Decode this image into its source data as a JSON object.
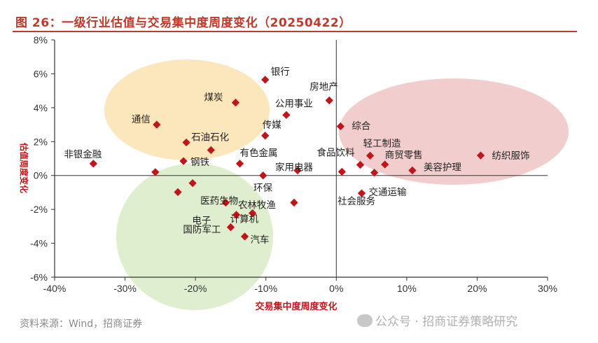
{
  "figure": {
    "title": "图 26：一级行业估值与交易集中度周度变化（20250422）",
    "source": "资料来源：Wind，招商证券",
    "watermark": "公众号 · 招商证券策略研究"
  },
  "chart_data": {
    "type": "scatter",
    "xlabel": "交易集中度周度变化",
    "ylabel": "估值周度变化",
    "xlim": [
      -0.4,
      0.3
    ],
    "ylim": [
      -0.06,
      0.08
    ],
    "x_ticks": [
      "-40%",
      "-30%",
      "-20%",
      "-10%",
      "0%",
      "10%",
      "20%",
      "30%"
    ],
    "y_ticks": [
      "8%",
      "6%",
      "4%",
      "2%",
      "0%",
      "-2%",
      "-4%",
      "-6%"
    ],
    "marker_color": "#c0161b",
    "grid": false,
    "points": [
      {
        "label": "银行",
        "x": -0.101,
        "y": 0.0565
      },
      {
        "label": "房地产",
        "x": -0.01,
        "y": 0.0443
      },
      {
        "label": "煤炭",
        "x": -0.143,
        "y": 0.043
      },
      {
        "label": "公用事业",
        "x": -0.071,
        "y": 0.0357
      },
      {
        "label": "通信",
        "x": -0.255,
        "y": 0.03
      },
      {
        "label": "综合",
        "x": 0.006,
        "y": 0.029
      },
      {
        "label": "传媒",
        "x": -0.101,
        "y": 0.0235
      },
      {
        "label": "石油石化",
        "x": -0.213,
        "y": 0.0195
      },
      {
        "label": "",
        "x": -0.178,
        "y": 0.015
      },
      {
        "label": "纺织服饰",
        "x": 0.205,
        "y": 0.0118
      },
      {
        "label": "轻工制造",
        "x": 0.048,
        "y": 0.0117
      },
      {
        "label": "钢铁",
        "x": -0.217,
        "y": 0.0085
      },
      {
        "label": "非银金融",
        "x": -0.345,
        "y": 0.007
      },
      {
        "label": "有色金属",
        "x": -0.137,
        "y": 0.007
      },
      {
        "label": "商贸零售",
        "x": 0.069,
        "y": 0.0065
      },
      {
        "label": "食品饮料",
        "x": 0.034,
        "y": 0.0063
      },
      {
        "label": "家用电器",
        "x": -0.055,
        "y": 0.003
      },
      {
        "label": "美容护理",
        "x": 0.108,
        "y": 0.003
      },
      {
        "label": "",
        "x": -0.257,
        "y": 0.002
      },
      {
        "label": "",
        "x": 0.008,
        "y": 0.0022
      },
      {
        "label": "",
        "x": 0.054,
        "y": 0.0017
      },
      {
        "label": "",
        "x": -0.104,
        "y": 0.0
      },
      {
        "label": "医药生物",
        "x": -0.204,
        "y": -0.0045
      },
      {
        "label": "",
        "x": -0.225,
        "y": -0.0098
      },
      {
        "label": "交通运输",
        "x": 0.036,
        "y": -0.0105
      },
      {
        "label": "电子",
        "x": -0.157,
        "y": -0.016
      },
      {
        "label": "农林牧渔",
        "x": -0.06,
        "y": -0.016
      },
      {
        "label": "计算机",
        "x": -0.119,
        "y": -0.0222
      },
      {
        "label": "",
        "x": -0.142,
        "y": -0.0232
      },
      {
        "label": "国防军工",
        "x": -0.15,
        "y": -0.0305
      },
      {
        "label": "汽车",
        "x": -0.13,
        "y": -0.036
      },
      {
        "label": "环保",
        "x": null,
        "y": null
      },
      {
        "label": "社会服务",
        "x": null,
        "y": null
      }
    ],
    "clusters": [
      {
        "name": "yellow",
        "color": "#fbe3b0"
      },
      {
        "name": "red",
        "color": "#efc4c4"
      },
      {
        "name": "green",
        "color": "#d9ebc7"
      }
    ]
  }
}
